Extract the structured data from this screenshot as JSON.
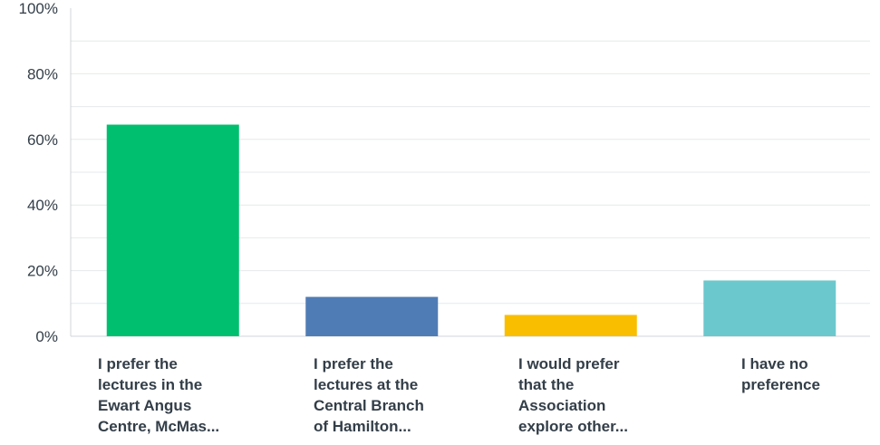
{
  "chart_data": {
    "type": "bar",
    "title": "",
    "xlabel": "",
    "ylabel": "",
    "ylim": [
      0,
      100
    ],
    "yticks": [
      "0%",
      "20%",
      "40%",
      "60%",
      "80%",
      "100%"
    ],
    "grid": true,
    "categories": [
      "I prefer the\nlectures in the\nEwart Angus\nCentre, McMas...",
      "I prefer the\nlectures at the\nCentral Branch\nof Hamilton...",
      "I would prefer\nthat the\nAssociation\nexplore other...",
      "I have no\npreference"
    ],
    "values": [
      64.5,
      12,
      6.5,
      17
    ],
    "colors": [
      "#00bf6f",
      "#507cb6",
      "#f9be00",
      "#6bc8cd"
    ]
  }
}
